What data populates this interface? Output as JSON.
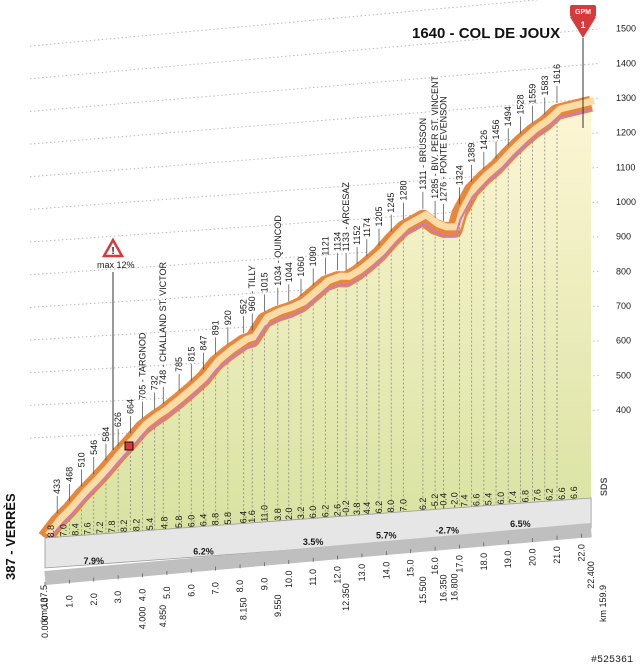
{
  "chart_data": {
    "type": "area",
    "title": "1640 - COL DE JOUX",
    "start_label": "387 - VERRÈS",
    "gpm_badge": {
      "label": "GPM",
      "number": "1"
    },
    "max_gradient": "max 12%",
    "km_start": "km 137.5",
    "km_end": "km 159.9",
    "watermark": "#525361",
    "logo": "SDS",
    "ylim": [
      387,
      1640
    ],
    "y_ticks": [
      400,
      500,
      600,
      700,
      800,
      900,
      1000,
      1100,
      1200,
      1300,
      1400,
      1500,
      1600
    ],
    "x_ticks": [
      "0.0",
      "1.0",
      "2.0",
      "3.0",
      "4.0",
      "5.0",
      "6.0",
      "7.0",
      "8.0",
      "9.0",
      "10.0",
      "11.0",
      "12.0",
      "13.0",
      "14.0",
      "15.0",
      "16.0",
      "17.0",
      "18.0",
      "19.0",
      "20.0",
      "21.0",
      "22.0"
    ],
    "key_km": [
      "0.000",
      "4.000",
      "4.850",
      "8.150",
      "9.550",
      "12.350",
      "15.500",
      "16.350",
      "16.800",
      "22.400"
    ],
    "profile": [
      {
        "km": 0.0,
        "alt": 387
      },
      {
        "km": 0.5,
        "alt": 433
      },
      {
        "km": 1.0,
        "alt": 468
      },
      {
        "km": 1.5,
        "alt": 510
      },
      {
        "km": 2.0,
        "alt": 546
      },
      {
        "km": 2.5,
        "alt": 584
      },
      {
        "km": 3.0,
        "alt": 626
      },
      {
        "km": 3.5,
        "alt": 664
      },
      {
        "km": 4.0,
        "alt": 705
      },
      {
        "km": 4.5,
        "alt": 732
      },
      {
        "km": 4.85,
        "alt": 748
      },
      {
        "km": 5.5,
        "alt": 785
      },
      {
        "km": 6.0,
        "alt": 815
      },
      {
        "km": 6.5,
        "alt": 847
      },
      {
        "km": 7.0,
        "alt": 891
      },
      {
        "km": 7.5,
        "alt": 920
      },
      {
        "km": 8.15,
        "alt": 952
      },
      {
        "km": 8.5,
        "alt": 960
      },
      {
        "km": 9.0,
        "alt": 1015
      },
      {
        "km": 9.55,
        "alt": 1034
      },
      {
        "km": 10.0,
        "alt": 1044
      },
      {
        "km": 10.5,
        "alt": 1060
      },
      {
        "km": 11.0,
        "alt": 1090
      },
      {
        "km": 11.5,
        "alt": 1121
      },
      {
        "km": 12.0,
        "alt": 1134
      },
      {
        "km": 12.35,
        "alt": 1133
      },
      {
        "km": 12.8,
        "alt": 1152
      },
      {
        "km": 13.2,
        "alt": 1174
      },
      {
        "km": 13.7,
        "alt": 1205
      },
      {
        "km": 14.2,
        "alt": 1245
      },
      {
        "km": 14.7,
        "alt": 1280
      },
      {
        "km": 15.5,
        "alt": 1311
      },
      {
        "km": 16.0,
        "alt": 1285
      },
      {
        "km": 16.35,
        "alt": 1276
      },
      {
        "km": 16.8,
        "alt": 1276
      },
      {
        "km": 17.0,
        "alt": 1324
      },
      {
        "km": 17.5,
        "alt": 1389
      },
      {
        "km": 18.0,
        "alt": 1426
      },
      {
        "km": 18.5,
        "alt": 1456
      },
      {
        "km": 19.0,
        "alt": 1494
      },
      {
        "km": 19.5,
        "alt": 1528
      },
      {
        "km": 20.0,
        "alt": 1559
      },
      {
        "km": 20.5,
        "alt": 1583
      },
      {
        "km": 21.0,
        "alt": 1616
      },
      {
        "km": 22.4,
        "alt": 1640
      }
    ],
    "alt_labels": [
      {
        "km": 0.5,
        "text": "433"
      },
      {
        "km": 1.0,
        "text": "468"
      },
      {
        "km": 1.5,
        "text": "510"
      },
      {
        "km": 2.0,
        "text": "546"
      },
      {
        "km": 2.5,
        "text": "584"
      },
      {
        "km": 3.0,
        "text": "626"
      },
      {
        "km": 3.5,
        "text": "664"
      },
      {
        "km": 4.0,
        "text": "705 - TARGNOD"
      },
      {
        "km": 4.5,
        "text": "732"
      },
      {
        "km": 4.85,
        "text": "748 - CHALLAND ST. VICTOR"
      },
      {
        "km": 5.5,
        "text": "785"
      },
      {
        "km": 6.0,
        "text": "815"
      },
      {
        "km": 6.5,
        "text": "847"
      },
      {
        "km": 7.0,
        "text": "891"
      },
      {
        "km": 7.5,
        "text": "920"
      },
      {
        "km": 8.15,
        "text": "952"
      },
      {
        "km": 8.5,
        "text": "960 - TILLY"
      },
      {
        "km": 9.0,
        "text": "1015"
      },
      {
        "km": 9.55,
        "text": "1034 - QUINCOD"
      },
      {
        "km": 10.0,
        "text": "1044"
      },
      {
        "km": 10.5,
        "text": "1060"
      },
      {
        "km": 11.0,
        "text": "1090"
      },
      {
        "km": 11.5,
        "text": "1121"
      },
      {
        "km": 12.0,
        "text": "1134"
      },
      {
        "km": 12.35,
        "text": "1133 - ARCESAZ"
      },
      {
        "km": 12.8,
        "text": "1152"
      },
      {
        "km": 13.2,
        "text": "1174"
      },
      {
        "km": 13.7,
        "text": "1205"
      },
      {
        "km": 14.2,
        "text": "1245"
      },
      {
        "km": 14.7,
        "text": "1280"
      },
      {
        "km": 15.5,
        "text": "1311 - BRUSSON"
      },
      {
        "km": 16.0,
        "text": "1285 - BIV. PER ST. VINCENT"
      },
      {
        "km": 16.35,
        "text": "1276 - PONTE EVENSON"
      },
      {
        "km": 17.0,
        "text": "1324"
      },
      {
        "km": 17.5,
        "text": "1389"
      },
      {
        "km": 18.0,
        "text": "1426"
      },
      {
        "km": 18.5,
        "text": "1456"
      },
      {
        "km": 19.0,
        "text": "1494"
      },
      {
        "km": 19.5,
        "text": "1528"
      },
      {
        "km": 20.0,
        "text": "1559"
      },
      {
        "km": 20.5,
        "text": "1583"
      },
      {
        "km": 21.0,
        "text": "1616"
      }
    ],
    "seg_gradients": [
      {
        "km": 0.25,
        "text": "8.8"
      },
      {
        "km": 0.75,
        "text": "7.0"
      },
      {
        "km": 1.25,
        "text": "8.4"
      },
      {
        "km": 1.75,
        "text": "7.6"
      },
      {
        "km": 2.25,
        "text": "7.2"
      },
      {
        "km": 2.75,
        "text": "7.8"
      },
      {
        "km": 3.25,
        "text": "8.2"
      },
      {
        "km": 3.75,
        "text": "8.2"
      },
      {
        "km": 4.3,
        "text": "5.4"
      },
      {
        "km": 4.9,
        "text": "4.8"
      },
      {
        "km": 5.5,
        "text": "5.8"
      },
      {
        "km": 6.0,
        "text": "6.0"
      },
      {
        "km": 6.5,
        "text": "6.4"
      },
      {
        "km": 7.0,
        "text": "8.8"
      },
      {
        "km": 7.5,
        "text": "5.8"
      },
      {
        "km": 8.15,
        "text": "6.4"
      },
      {
        "km": 8.5,
        "text": "1.6"
      },
      {
        "km": 9.0,
        "text": "11.0"
      },
      {
        "km": 9.55,
        "text": "3.8"
      },
      {
        "km": 10.0,
        "text": "2.0"
      },
      {
        "km": 10.5,
        "text": "3.2"
      },
      {
        "km": 11.0,
        "text": "6.0"
      },
      {
        "km": 11.5,
        "text": "6.2"
      },
      {
        "km": 12.0,
        "text": "2.6"
      },
      {
        "km": 12.35,
        "text": "-0.2"
      },
      {
        "km": 12.8,
        "text": "3.8"
      },
      {
        "km": 13.2,
        "text": "4.4"
      },
      {
        "km": 13.7,
        "text": "6.2"
      },
      {
        "km": 14.2,
        "text": "8.0"
      },
      {
        "km": 14.7,
        "text": "7.0"
      },
      {
        "km": 15.5,
        "text": "6.2"
      },
      {
        "km": 16.0,
        "text": "-5.2"
      },
      {
        "km": 16.35,
        "text": "-0.4"
      },
      {
        "km": 16.8,
        "text": "-2.0"
      },
      {
        "km": 17.2,
        "text": "7.4"
      },
      {
        "km": 17.7,
        "text": "6.6"
      },
      {
        "km": 18.2,
        "text": "5.4"
      },
      {
        "km": 18.7,
        "text": "6.0"
      },
      {
        "km": 19.2,
        "text": "7.4"
      },
      {
        "km": 19.7,
        "text": "6.8"
      },
      {
        "km": 20.2,
        "text": "7.6"
      },
      {
        "km": 20.7,
        "text": "6.2"
      },
      {
        "km": 21.2,
        "text": "6.6"
      },
      {
        "km": 21.7,
        "text": "6.6"
      }
    ],
    "avg_gradients": [
      {
        "km": 2.0,
        "text": "7.9%"
      },
      {
        "km": 6.5,
        "text": "6.2%"
      },
      {
        "km": 11.0,
        "text": "3.5%"
      },
      {
        "km": 14.0,
        "text": "5.7%"
      },
      {
        "km": 16.5,
        "text": "-2.7%"
      },
      {
        "km": 19.5,
        "text": "6.5%"
      }
    ],
    "colors": {
      "band_outer": "#e8873a",
      "band_inner": "#fbdca6",
      "band_highlight": "#c97bc2",
      "fill_top": "#fdf6d5",
      "fill_bottom": "#d8e2a0",
      "base": "#bdbdbd"
    }
  }
}
